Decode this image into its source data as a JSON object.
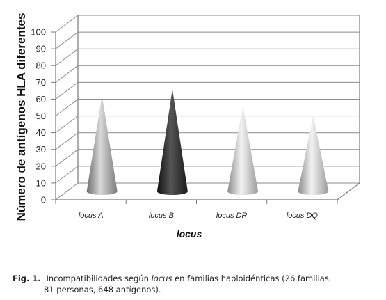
{
  "chart_data": {
    "type": "bar",
    "style": "3d-cone",
    "categories": [
      "locus A",
      "locus B",
      "locus DR",
      "locus DQ"
    ],
    "values": [
      57,
      61,
      51,
      45
    ],
    "colors": [
      "#9a9a9a",
      "#2a2a2a",
      "#b4b4b4",
      "#b4b4b4"
    ],
    "ylabel": "Número de antígenos HLA diferentes",
    "xlabel": "locus",
    "ylim": [
      0,
      100
    ],
    "yticks": [
      0,
      10,
      20,
      30,
      40,
      50,
      60,
      70,
      80,
      90,
      100
    ],
    "grid": true,
    "legend": "none"
  },
  "caption": {
    "label": "Fig. 1.",
    "text_before": "Incompatibilidades según",
    "text_italic": "locus",
    "text_after": "en familias haploidénticas (26 familias,",
    "text_line2": "81 personas, 648 antígenos)."
  }
}
